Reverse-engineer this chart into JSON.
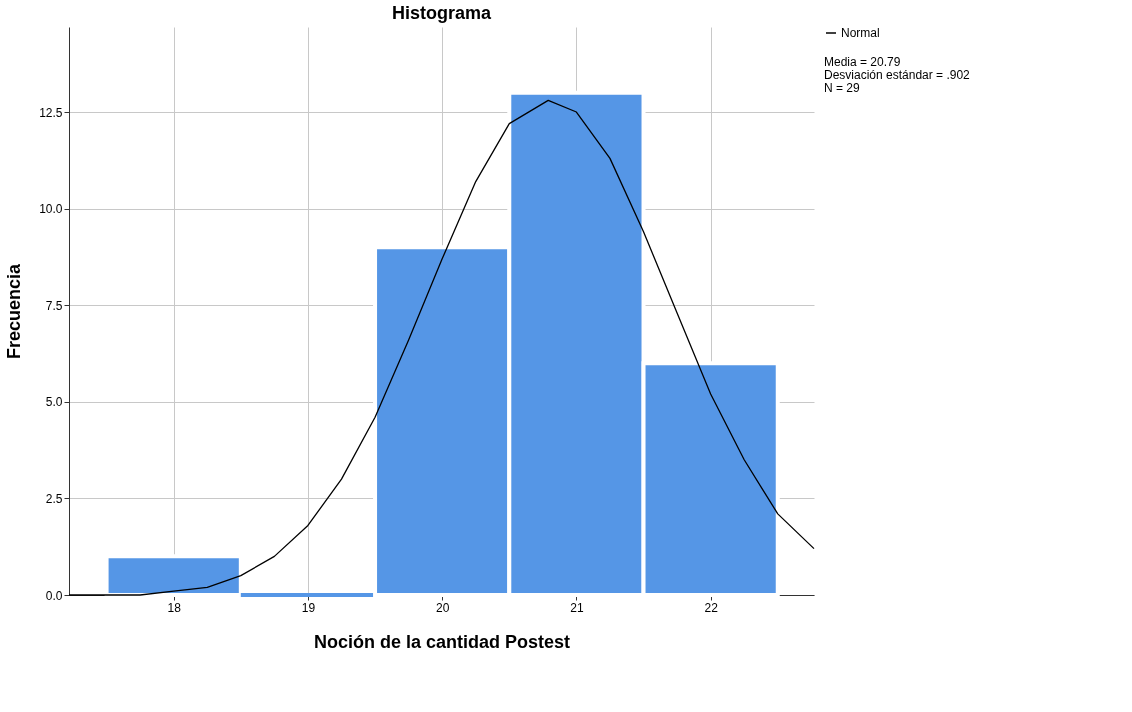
{
  "chart_data": {
    "type": "histogram",
    "title": "Histograma",
    "xlabel": "Noción de la cantidad Postest",
    "ylabel": "Frecuencia",
    "bins": [
      17.5,
      18.5,
      19.5,
      20.5,
      21.5,
      22.5
    ],
    "values": [
      1,
      0,
      9,
      13,
      6
    ],
    "color": "#5596e6",
    "series": [
      {
        "type": "line",
        "name": "Normal",
        "color": "#000000",
        "x": [
          17.22,
          17.5,
          17.75,
          18.0,
          18.25,
          18.5,
          18.75,
          19.0,
          19.25,
          19.5,
          19.75,
          20.0,
          20.25,
          20.5,
          20.79,
          21.0,
          21.25,
          21.5,
          21.75,
          22.0,
          22.25,
          22.5,
          22.77
        ],
        "values": [
          0.0,
          0.0,
          0.0,
          0.1,
          0.2,
          0.5,
          1.0,
          1.8,
          3.0,
          4.6,
          6.6,
          8.7,
          10.7,
          12.2,
          12.8,
          12.5,
          11.3,
          9.4,
          7.3,
          5.2,
          3.5,
          2.1,
          1.2
        ]
      }
    ],
    "xlim": [
      17.22,
      22.77
    ],
    "ylim": [
      0,
      14.7
    ],
    "xticks": [
      18,
      19,
      20,
      21,
      22
    ],
    "yticks": [
      {
        "value": 0,
        "label": "0.0"
      },
      {
        "value": 2.5,
        "label": "2.5"
      },
      {
        "value": 5,
        "label": "5.0"
      },
      {
        "value": 7.5,
        "label": "7.5"
      },
      {
        "value": 10,
        "label": "10.0"
      },
      {
        "value": 12.5,
        "label": "12.5"
      }
    ],
    "grid": true,
    "legend": "top right",
    "annotations": [
      "Media = 20.79",
      "Desviación estándar = .902",
      "N = 29"
    ]
  }
}
